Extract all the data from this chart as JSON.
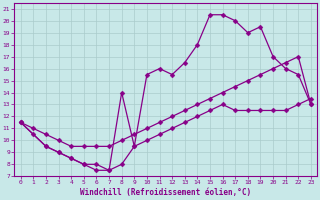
{
  "xlabel": "Windchill (Refroidissement éolien,°C)",
  "xlim": [
    -0.5,
    23.5
  ],
  "ylim": [
    7,
    21.5
  ],
  "yticks": [
    7,
    8,
    9,
    10,
    11,
    12,
    13,
    14,
    15,
    16,
    17,
    18,
    19,
    20,
    21
  ],
  "xticks": [
    0,
    1,
    2,
    3,
    4,
    5,
    6,
    7,
    8,
    9,
    10,
    11,
    12,
    13,
    14,
    15,
    16,
    17,
    18,
    19,
    20,
    21,
    22,
    23
  ],
  "background_color": "#c8e8e8",
  "grid_color": "#aacccc",
  "line_color": "#880088",
  "curve1_x": [
    0,
    1,
    2,
    3,
    4,
    5,
    6,
    7,
    8,
    9,
    10,
    11,
    12,
    13,
    14,
    15,
    16,
    17,
    18,
    19,
    20,
    21,
    22,
    23
  ],
  "curve1_y": [
    11.5,
    10.5,
    9.5,
    9.0,
    8.5,
    8.0,
    7.5,
    7.5,
    8.0,
    9.5,
    10.0,
    10.5,
    11.0,
    11.5,
    12.0,
    12.5,
    13.0,
    12.5,
    12.5,
    12.5,
    12.5,
    12.5,
    13.0,
    13.5
  ],
  "curve2_x": [
    0,
    1,
    2,
    3,
    4,
    5,
    6,
    7,
    8,
    9,
    10,
    11,
    12,
    13,
    14,
    15,
    16,
    17,
    18,
    19,
    20,
    21,
    22,
    23
  ],
  "curve2_y": [
    11.5,
    11.0,
    10.5,
    10.0,
    9.5,
    9.5,
    9.5,
    9.5,
    10.0,
    10.5,
    11.0,
    11.5,
    12.0,
    12.5,
    13.0,
    13.5,
    14.0,
    14.5,
    15.0,
    15.5,
    16.0,
    16.5,
    17.0,
    13.0
  ],
  "curve3_x": [
    0,
    2,
    3,
    4,
    5,
    6,
    7,
    8,
    9,
    10,
    11,
    12,
    13,
    14,
    15,
    16,
    17,
    18,
    19,
    20,
    21,
    22,
    23
  ],
  "curve3_y": [
    11.5,
    9.5,
    9.0,
    8.5,
    8.0,
    8.0,
    7.5,
    14.0,
    9.5,
    15.5,
    16.0,
    15.5,
    16.5,
    18.0,
    20.5,
    20.5,
    20.0,
    19.0,
    19.5,
    17.0,
    16.0,
    15.5,
    13.0
  ]
}
